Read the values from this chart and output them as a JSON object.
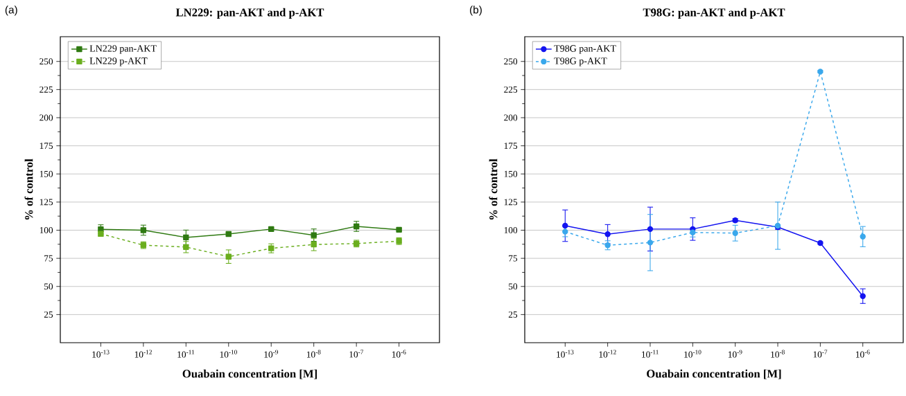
{
  "chart_data": [
    {
      "type": "line",
      "title": "LN229:  pan-AKT and p-AKT",
      "xlabel": "Ouabain concentration [M]",
      "ylabel": "% of control",
      "annotations": [
        "(a)"
      ],
      "categories": [
        "10$^{-13}$",
        "10$^{-12}$",
        "10$^{-11}$",
        "10$^{-10}$",
        "10$^{-9}$",
        "10$^{-8}$",
        "10$^{-7}$",
        "10$^{-6}$"
      ],
      "ylim": [
        0,
        272
      ],
      "yticks": [
        25,
        50,
        75,
        100,
        125,
        150,
        175,
        200,
        225,
        250
      ],
      "grid": "y",
      "legend": "top left",
      "marker": "square",
      "series": [
        {
          "name": "LN229 pan-AKT",
          "color": "#2f7a12",
          "line_style": "solid",
          "values": [
            100.8,
            100,
            93.6,
            96.6,
            101,
            95.6,
            103.4,
            100.4
          ],
          "errors": [
            4,
            4.5,
            6.5,
            1.5,
            1,
            5.5,
            4.5,
            1
          ]
        },
        {
          "name": "LN229 p-AKT",
          "color": "#6aae1e",
          "line_style": "dashed",
          "values": [
            96.8,
            86.7,
            85,
            76.5,
            83.9,
            87.3,
            88.1,
            90.3
          ],
          "errors": [
            2,
            3,
            5,
            6,
            4,
            5.5,
            3,
            3
          ]
        }
      ]
    },
    {
      "type": "line",
      "title": "T98G:   pan-AKT and p-AKT",
      "xlabel": "Ouabain concentration [M]",
      "ylabel": "% of control",
      "annotations": [
        "(b)"
      ],
      "categories": [
        "10$^{-13}$",
        "10$^{-12}$",
        "10$^{-11}$",
        "10$^{-10}$",
        "10$^{-9}$",
        "10$^{-8}$",
        "10$^{-7}$",
        "10$^{-6}$"
      ],
      "ylim": [
        0,
        272
      ],
      "yticks": [
        25,
        50,
        75,
        100,
        125,
        150,
        175,
        200,
        225,
        250
      ],
      "grid": "y",
      "legend": "top left",
      "marker": "circle",
      "series": [
        {
          "name": "T98G pan-AKT",
          "color": "#1414f0",
          "line_style": "solid",
          "values": [
            104,
            96.5,
            101,
            101,
            108.8,
            102.8,
            88.6,
            41.4
          ],
          "errors": [
            14,
            8.5,
            19.5,
            10,
            1.5,
            2,
            1,
            6.5
          ]
        },
        {
          "name": "T98G p-AKT",
          "color": "#3aa8ec",
          "line_style": "dashed",
          "values": [
            98.7,
            86.6,
            89,
            98,
            97.4,
            104,
            241,
            94.3
          ],
          "errors": [
            4.5,
            4,
            25,
            4,
            7,
            21,
            1,
            9
          ]
        }
      ]
    }
  ]
}
